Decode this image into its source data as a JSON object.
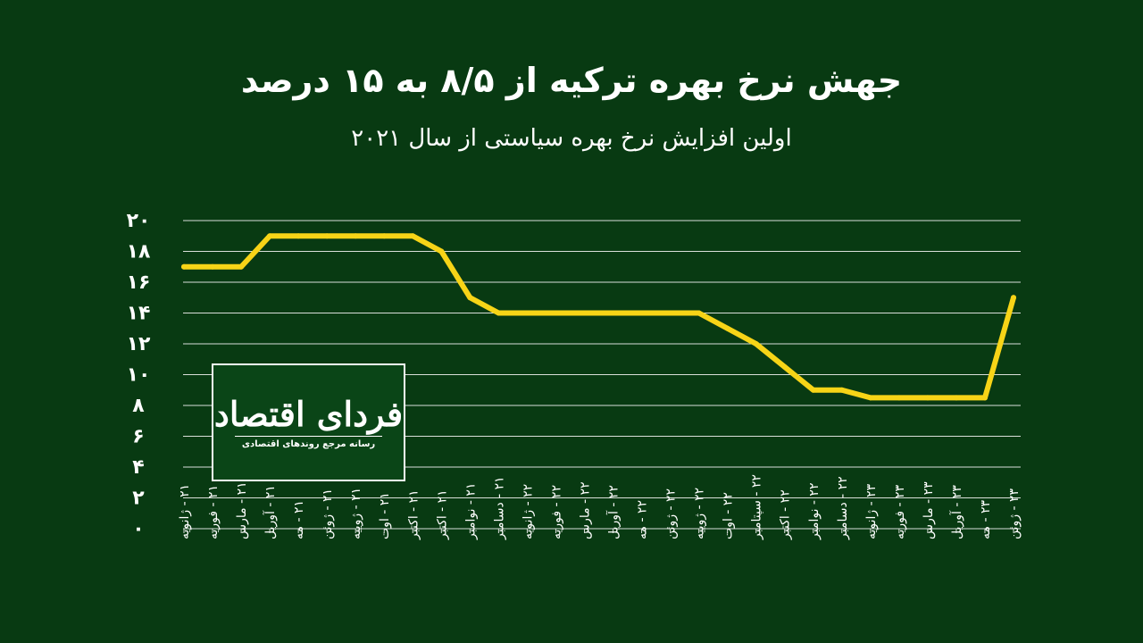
{
  "header": {
    "title": "جهش نرخ بهره ترکیه از ۸/۵ به ۱۵ درصد",
    "subtitle": "اولین افزایش نرخ بهره سیاستی از سال ۲۰۲۱"
  },
  "logo": {
    "name": "فردای اقتصاد",
    "tagline": "رسانه مرجع روندهای اقتصادی"
  },
  "chart_data": {
    "type": "line",
    "title": "جهش نرخ بهره ترکیه از ۸/۵ به ۱۵ درصد",
    "subtitle": "اولین افزایش نرخ بهره سیاستی از سال ۲۰۲۱",
    "categories": [
      "۲۱ - ژانویه",
      "۲۱ - فوریه",
      "۲۱ - مارس",
      "۲۱ - آوریل",
      "۲۱ - مه",
      "۲۱ - ژوئن",
      "۲۱ - ژوییه",
      "۲۱ - اوت",
      "۲۱ - اکتبر",
      "۲۱ - اکتبر",
      "۲۱ - نوامبر",
      "۲۱ - دسامبر",
      "۲۲ - ژانویه",
      "۲۲ - فوریه",
      "۲۲ - مارس",
      "۲۲ - آوریل",
      "۲۲ - مه",
      "۲۲ - ژوئن",
      "۲۲ - ژوییه",
      "۲۲ - اوت",
      "۲۲ - سپتامبر",
      "۲۲ - اکتبر",
      "۲۲ - نوامبر",
      "۲۲ - دسامبر",
      "۲۳ - ژانویه",
      "۲۳ - فوریه",
      "۲۳ - مارس",
      "۲۳ - آوریل",
      "۲۳ - مه",
      "۲۳ - ژوئن"
    ],
    "values": [
      17,
      17,
      17,
      19,
      19,
      19,
      19,
      19,
      19,
      18,
      15,
      14,
      14,
      14,
      14,
      14,
      14,
      14,
      14,
      13,
      12,
      10.5,
      9,
      9,
      8.5,
      8.5,
      8.5,
      8.5,
      8.5,
      15
    ],
    "yticks": [
      "۰",
      "۲",
      "۴",
      "۶",
      "۸",
      "۱۰",
      "۱۲",
      "۱۴",
      "۱۶",
      "۱۸",
      "۲۰"
    ],
    "ylim": [
      0,
      20
    ],
    "grid": true,
    "line_color": "#f7d417",
    "grid_color": "#d9dfd9"
  }
}
